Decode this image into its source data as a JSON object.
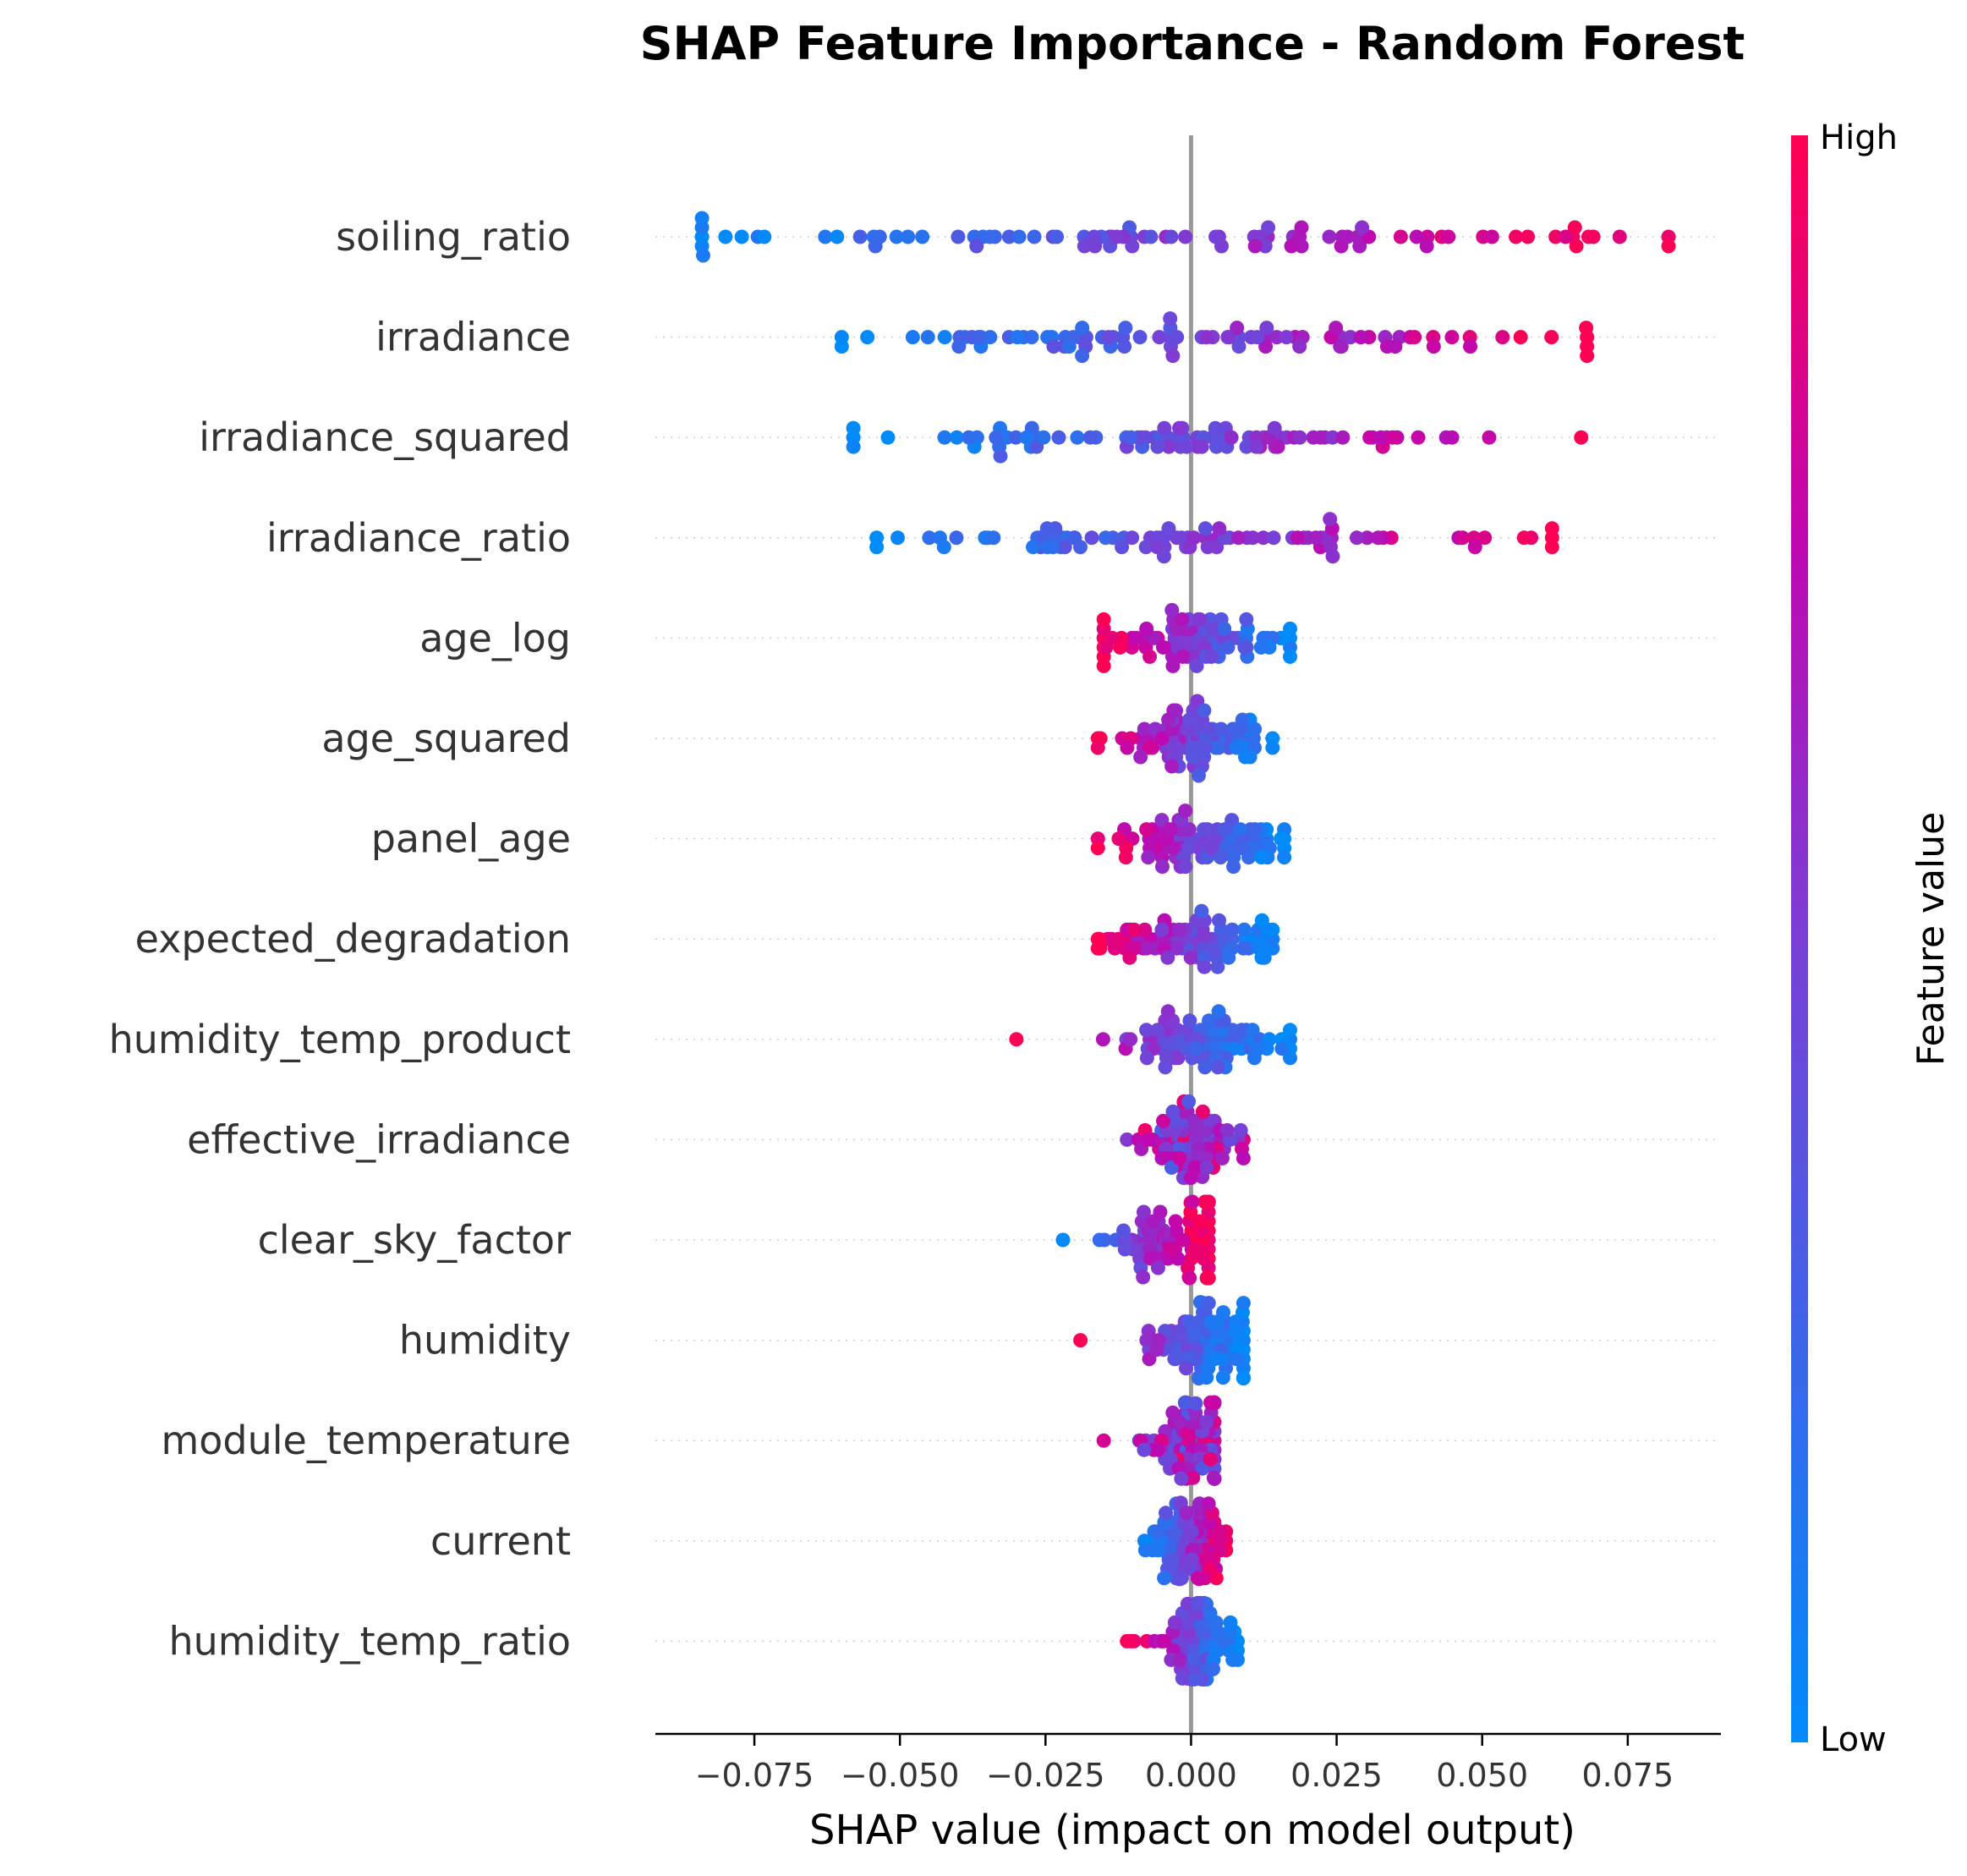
{
  "chart_data": {
    "type": "scatter",
    "subtype": "shap-beeswarm",
    "title": "SHAP Feature Importance - Random Forest",
    "xlabel": "SHAP value (impact on model output)",
    "ylabel": "",
    "xlim": [
      -0.092,
      0.091
    ],
    "xticks": [
      -0.075,
      -0.05,
      -0.025,
      0.0,
      0.025,
      0.05,
      0.075
    ],
    "xtick_labels": [
      "−0.075",
      "−0.050",
      "−0.025",
      "0.000",
      "0.025",
      "0.050",
      "0.075"
    ],
    "features": [
      {
        "name": "soiling_ratio",
        "min": -0.084,
        "max": 0.082,
        "trend": "positive",
        "spread": 0.045
      },
      {
        "name": "irradiance",
        "min": -0.06,
        "max": 0.068,
        "trend": "positive",
        "spread": 0.032
      },
      {
        "name": "irradiance_squared",
        "min": -0.058,
        "max": 0.067,
        "trend": "positive",
        "spread": 0.03
      },
      {
        "name": "irradiance_ratio",
        "min": -0.054,
        "max": 0.062,
        "trend": "positive",
        "spread": 0.028
      },
      {
        "name": "age_log",
        "min": -0.015,
        "max": 0.017,
        "trend": "negative",
        "spread": 0.01
      },
      {
        "name": "age_squared",
        "min": -0.016,
        "max": 0.014,
        "trend": "negative",
        "spread": 0.009
      },
      {
        "name": "panel_age",
        "min": -0.016,
        "max": 0.016,
        "trend": "negative",
        "spread": 0.009
      },
      {
        "name": "expected_degradation",
        "min": -0.016,
        "max": 0.014,
        "trend": "negative",
        "spread": 0.009
      },
      {
        "name": "humidity_temp_product",
        "min": -0.03,
        "max": 0.017,
        "trend": "negative",
        "spread": 0.008
      },
      {
        "name": "effective_irradiance",
        "min": -0.011,
        "max": 0.009,
        "trend": "mixed",
        "spread": 0.005
      },
      {
        "name": "clear_sky_factor",
        "min": -0.022,
        "max": 0.003,
        "trend": "positive",
        "spread": 0.006
      },
      {
        "name": "humidity",
        "min": -0.019,
        "max": 0.009,
        "trend": "negative",
        "spread": 0.005
      },
      {
        "name": "module_temperature",
        "min": -0.015,
        "max": 0.004,
        "trend": "mixed",
        "spread": 0.004
      },
      {
        "name": "current",
        "min": -0.008,
        "max": 0.006,
        "trend": "positive",
        "spread": 0.003
      },
      {
        "name": "humidity_temp_ratio",
        "min": -0.011,
        "max": 0.008,
        "trend": "negative",
        "spread": 0.004
      }
    ],
    "points_per_feature": 90,
    "colorbar": {
      "label": "Feature value",
      "high_label": "High",
      "low_label": "Low",
      "high_color": "#ff0052",
      "mid_color": "#b404b9",
      "low_color": "#008bfb"
    },
    "zero_line_color": "#999999",
    "grid_dotted_rows": true
  }
}
